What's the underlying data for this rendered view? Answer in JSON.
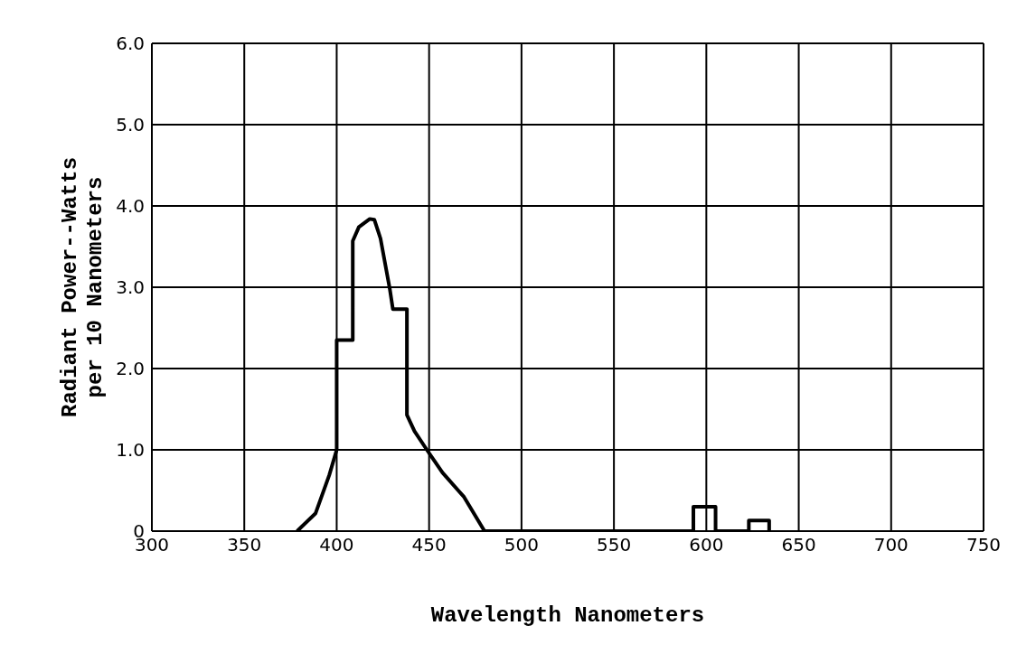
{
  "chart_data": {
    "type": "line",
    "xlabel": "Wavelength Nanometers",
    "ylabel": "Radiant Power--Watts\nper 10 Nanometers",
    "series": [
      {
        "color": "#000000",
        "x": [
          378.6,
          388.6,
          396,
          400,
          400,
          408.7,
          408.7,
          412,
          417.9,
          420.4,
          423.7,
          428.8,
          430.4,
          438,
          438,
          442.1,
          448.8,
          457.2,
          468.9,
          480,
          593,
          593,
          605,
          605,
          623,
          623,
          634,
          634
        ],
        "values": [
          0,
          0.22,
          0.69,
          1.0,
          2.35,
          2.35,
          3.57,
          3.74,
          3.84,
          3.83,
          3.6,
          2.97,
          2.73,
          2.73,
          1.43,
          1.23,
          1.0,
          0.72,
          0.42,
          0,
          0,
          0.3,
          0.3,
          0,
          0,
          0.13,
          0.13,
          0
        ]
      }
    ],
    "xlim": [
      300,
      750
    ],
    "xticks": [
      300,
      350,
      400,
      450,
      500,
      550,
      600,
      650,
      700,
      750
    ],
    "ylim": [
      0,
      6
    ],
    "yticks": [
      0,
      {
        "value": 1,
        "label": "1.0"
      },
      {
        "value": 2,
        "label": "2.0"
      },
      {
        "value": 3,
        "label": "3.0"
      },
      {
        "value": 4,
        "label": "4.0"
      },
      {
        "value": 5,
        "label": "5.0"
      },
      {
        "value": 6,
        "label": "6.0"
      }
    ],
    "grid": true,
    "marker": "none",
    "line_style": "solid"
  }
}
